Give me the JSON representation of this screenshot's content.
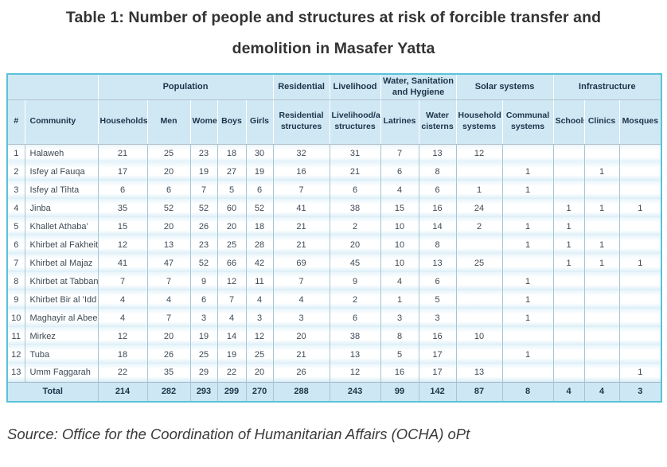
{
  "title": {
    "lines": [
      "Table 1: Number of people and structures at risk of forcible transfer and",
      "demolition in Masafer Yatta"
    ]
  },
  "source": "Source: Office for the Coordination of Humanitarian Affairs (OCHA) oPt",
  "colors": {
    "header_bg": "#cfe8f4",
    "total_row_bg": "#cde8f4",
    "outer_border_teal": "#58c2d9",
    "cell_border": "#a9c4d2",
    "row_band": "#dceef8",
    "header_text": "#1d3349",
    "body_text": "#3d4a55",
    "title_text": "#333333"
  },
  "chart_data": {
    "type": "table",
    "title": "Table 1: Number of people and structures at risk of forcible transfer and demolition in Masafer Yatta",
    "source": "Source: Office for the Coordination of Humanitarian Affairs (OCHA) oPt",
    "column_groups": [
      {
        "label": "",
        "span": 2
      },
      {
        "label": "Population",
        "span": 5
      },
      {
        "label": "Residential",
        "span": 1
      },
      {
        "label": "Livelihood",
        "span": 1
      },
      {
        "label": "Water, Sanitation and Hygiene",
        "span": 2
      },
      {
        "label": "Solar systems",
        "span": 2
      },
      {
        "label": "Infrastructure",
        "span": 3
      }
    ],
    "columns": [
      "#",
      "Community",
      "Households",
      "Men",
      "Women",
      "Boys",
      "Girls",
      "Residential structures",
      "Livelihood/animal structures",
      "Latrines",
      "Water cisterns",
      "Household systems",
      "Communal systems",
      "Schools",
      "Clinics",
      "Mosques"
    ],
    "rows": [
      [
        "1",
        "Halaweh",
        "21",
        "25",
        "23",
        "18",
        "30",
        "32",
        "31",
        "7",
        "13",
        "12",
        "",
        "",
        "",
        ""
      ],
      [
        "2",
        "Isfey al Fauqa",
        "17",
        "20",
        "19",
        "27",
        "19",
        "16",
        "21",
        "6",
        "8",
        "",
        "1",
        "",
        "1",
        ""
      ],
      [
        "3",
        "Isfey al Tihta",
        "6",
        "6",
        "7",
        "5",
        "6",
        "7",
        "6",
        "4",
        "6",
        "1",
        "1",
        "",
        "",
        ""
      ],
      [
        "4",
        "Jinba",
        "35",
        "52",
        "52",
        "60",
        "52",
        "41",
        "38",
        "15",
        "16",
        "24",
        "",
        "1",
        "1",
        "1"
      ],
      [
        "5",
        "Khallet Athaba’",
        "15",
        "20",
        "26",
        "20",
        "18",
        "21",
        "2",
        "10",
        "14",
        "2",
        "1",
        "1",
        "",
        ""
      ],
      [
        "6",
        "Khirbet al Fakheit",
        "12",
        "13",
        "23",
        "25",
        "28",
        "21",
        "20",
        "10",
        "8",
        "",
        "1",
        "1",
        "1",
        ""
      ],
      [
        "7",
        "Khirbet al Majaz",
        "41",
        "47",
        "52",
        "66",
        "42",
        "69",
        "45",
        "10",
        "13",
        "25",
        "",
        "1",
        "1",
        "1"
      ],
      [
        "8",
        "Khirbet at Tabban",
        "7",
        "7",
        "9",
        "12",
        "11",
        "7",
        "9",
        "4",
        "6",
        "",
        "1",
        "",
        "",
        ""
      ],
      [
        "9",
        "Khirbet Bir al ’Idd",
        "4",
        "4",
        "6",
        "7",
        "4",
        "4",
        "2",
        "1",
        "5",
        "",
        "1",
        "",
        "",
        ""
      ],
      [
        "10",
        "Maghayir al Abeed",
        "4",
        "7",
        "3",
        "4",
        "3",
        "3",
        "6",
        "3",
        "3",
        "",
        "1",
        "",
        "",
        ""
      ],
      [
        "11",
        "Mirkez",
        "12",
        "20",
        "19",
        "14",
        "12",
        "20",
        "38",
        "8",
        "16",
        "10",
        "",
        "",
        "",
        ""
      ],
      [
        "12",
        "Tuba",
        "18",
        "26",
        "25",
        "19",
        "25",
        "21",
        "13",
        "5",
        "17",
        "",
        "1",
        "",
        "",
        ""
      ],
      [
        "13",
        "Umm Faggarah",
        "22",
        "35",
        "29",
        "22",
        "20",
        "26",
        "12",
        "16",
        "17",
        "13",
        "",
        "",
        "",
        "1"
      ]
    ],
    "total_row": {
      "label": "Total",
      "values": [
        "214",
        "282",
        "293",
        "299",
        "270",
        "288",
        "243",
        "99",
        "142",
        "87",
        "8",
        "4",
        "4",
        "3"
      ]
    }
  }
}
